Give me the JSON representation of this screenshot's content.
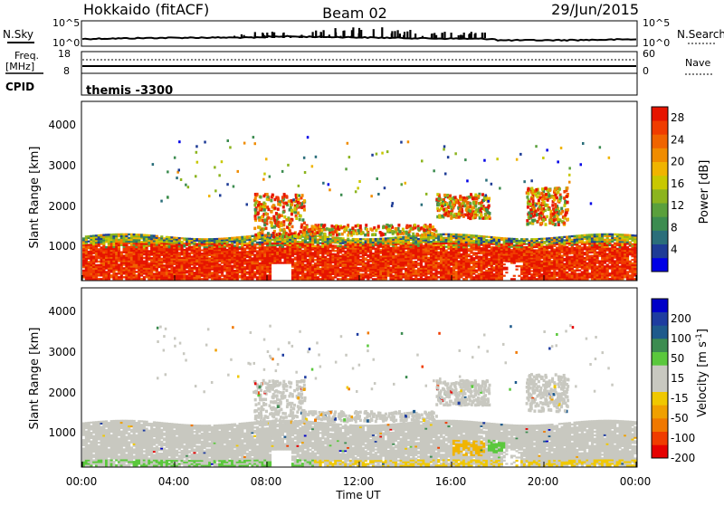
{
  "header": {
    "station": "Hokkaido (fitACF)",
    "beam": "Beam 02",
    "date": "29/Jun/2015"
  },
  "top_panel": {
    "left_label": "N.Sky",
    "left_ticks": [
      "10^5",
      "10^0"
    ],
    "right_label": "N.Search",
    "right_ticks": [
      "10^5",
      "10^0"
    ]
  },
  "freq_panel": {
    "left_label_1": "Freq.",
    "left_label_2": "[MHz]",
    "left_ticks": [
      "18",
      "8"
    ],
    "right_label": "Nave",
    "right_ticks": [
      "60",
      "0"
    ]
  },
  "cpid_panel": {
    "label": "CPID",
    "value": "themis -3300"
  },
  "chart_data": [
    {
      "type": "heatmap",
      "name": "power",
      "xlabel": "",
      "ylabel": "Slant Range [km]",
      "x_ticks": [
        "00:00",
        "04:00",
        "08:00",
        "12:00",
        "16:00",
        "20:00",
        "00:00"
      ],
      "y_ticks": [
        "1000",
        "2000",
        "3000",
        "4000"
      ],
      "ylim": [
        180,
        4500
      ],
      "colorbar": {
        "label": "Power [dB]",
        "ticks": [
          "4",
          "8",
          "12",
          "16",
          "20",
          "24",
          "28"
        ],
        "range": [
          0,
          30
        ],
        "colors": [
          "#0000e6",
          "#1e3c96",
          "#2a6e7a",
          "#3c8c50",
          "#5aa03c",
          "#8cb41e",
          "#c8c800",
          "#f0b400",
          "#f08c00",
          "#f06400",
          "#f03c00",
          "#e61400"
        ]
      },
      "regions": [
        {
          "t0": 0.0,
          "t1": 24.0,
          "r0": 180,
          "r1": 1300,
          "level": "high"
        },
        {
          "t0": 7.5,
          "t1": 9.5,
          "r0": 1300,
          "r1": 2300,
          "level": "high"
        },
        {
          "t0": 15.5,
          "t1": 17.5,
          "r0": 1800,
          "r1": 2300,
          "level": "medium"
        },
        {
          "t0": 19.3,
          "t1": 21.0,
          "r0": 1600,
          "r1": 2400,
          "level": "high"
        }
      ]
    },
    {
      "type": "heatmap",
      "name": "velocity",
      "xlabel": "Time UT",
      "ylabel": "Slant Range [km]",
      "x_ticks": [
        "00:00",
        "04:00",
        "08:00",
        "12:00",
        "16:00",
        "20:00",
        "00:00"
      ],
      "y_ticks": [
        "1000",
        "2000",
        "3000",
        "4000"
      ],
      "ylim": [
        180,
        4500
      ],
      "colorbar": {
        "label": "Velocity [m s^-1]",
        "ticks": [
          "200",
          "100",
          "50",
          "15",
          "-15",
          "-50",
          "-100",
          "-200"
        ],
        "range": [
          -250,
          250
        ],
        "colors": [
          "#e60000",
          "#f03c00",
          "#f07800",
          "#f0a000",
          "#f0c800",
          "#c8c8c0",
          "#c8c8c0",
          "#5ac83c",
          "#3c8c50",
          "#1e5a8c",
          "#1e3ca0",
          "#0000c8"
        ]
      },
      "regions": [
        {
          "t0": 0.0,
          "t1": 24.0,
          "r0": 180,
          "r1": 1300,
          "level": "ground-scatter"
        },
        {
          "t0": 7.5,
          "t1": 9.5,
          "r0": 1300,
          "r1": 2300,
          "level": "ground-scatter"
        },
        {
          "t0": 16.0,
          "t1": 17.5,
          "r0": 400,
          "r1": 800,
          "level": "negative"
        },
        {
          "t0": 17.5,
          "t1": 18.3,
          "r0": 500,
          "r1": 800,
          "level": "positive"
        }
      ]
    }
  ]
}
